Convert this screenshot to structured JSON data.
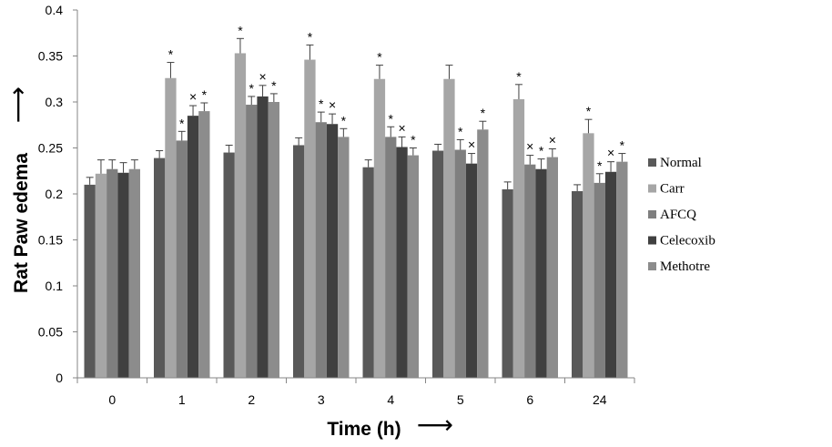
{
  "chart_data": {
    "type": "bar",
    "title": "",
    "xlabel": "Time (h)",
    "ylabel": "Rat Paw edema",
    "xlabel_arrow": "⟶",
    "ylabel_arrow": "⟶",
    "ylim": [
      0,
      0.4
    ],
    "yticks": [
      0,
      0.05,
      0.1,
      0.15,
      0.2,
      0.25,
      0.3,
      0.35,
      0.4
    ],
    "ytick_labels": [
      "0",
      "0.05",
      "0.1",
      "0.15",
      "0.2",
      "0.25",
      "0.3",
      "0.35",
      "0.4"
    ],
    "grid": false,
    "legend_position": "right",
    "categories": [
      "0",
      "1",
      "2",
      "3",
      "4",
      "5",
      "6",
      "24"
    ],
    "series": [
      {
        "name": "Normal",
        "color": "#595959",
        "values": [
          0.21,
          0.239,
          0.245,
          0.253,
          0.229,
          0.247,
          0.205,
          0.203
        ],
        "errors": [
          0.008,
          0.008,
          0.008,
          0.008,
          0.008,
          0.007,
          0.008,
          0.007
        ],
        "markers": [
          "",
          "",
          "",
          "",
          "",
          "",
          "",
          ""
        ]
      },
      {
        "name": "Carr",
        "color": "#a6a6a6",
        "values": [
          0.222,
          0.326,
          0.353,
          0.346,
          0.325,
          0.325,
          0.303,
          0.266
        ],
        "errors": [
          0.015,
          0.017,
          0.016,
          0.016,
          0.015,
          0.015,
          0.016,
          0.015
        ],
        "markers": [
          "",
          "*",
          "*",
          "*",
          "*",
          "",
          "*",
          "*"
        ]
      },
      {
        "name": "AFCQ",
        "color": "#7f7f7f",
        "values": [
          0.227,
          0.258,
          0.297,
          0.278,
          0.262,
          0.248,
          0.232,
          0.212
        ],
        "errors": [
          0.01,
          0.01,
          0.009,
          0.011,
          0.011,
          0.011,
          0.01,
          0.01
        ],
        "markers": [
          "",
          "*",
          "*",
          "*",
          "*",
          "*",
          "×",
          "*"
        ]
      },
      {
        "name": "Celecoxib",
        "color": "#404040",
        "values": [
          0.223,
          0.285,
          0.306,
          0.276,
          0.251,
          0.233,
          0.227,
          0.224
        ],
        "errors": [
          0.011,
          0.011,
          0.012,
          0.011,
          0.011,
          0.011,
          0.011,
          0.011
        ],
        "markers": [
          "",
          "×",
          "×",
          "×",
          "×",
          "×",
          "*",
          "×"
        ]
      },
      {
        "name": "Methotre",
        "color": "#8c8c8c",
        "values": [
          0.227,
          0.29,
          0.3,
          0.262,
          0.242,
          0.27,
          0.24,
          0.235
        ],
        "errors": [
          0.01,
          0.009,
          0.009,
          0.009,
          0.008,
          0.009,
          0.009,
          0.009
        ],
        "markers": [
          "",
          "*",
          "*",
          "*",
          "*",
          "*",
          "×",
          "*"
        ]
      }
    ]
  }
}
